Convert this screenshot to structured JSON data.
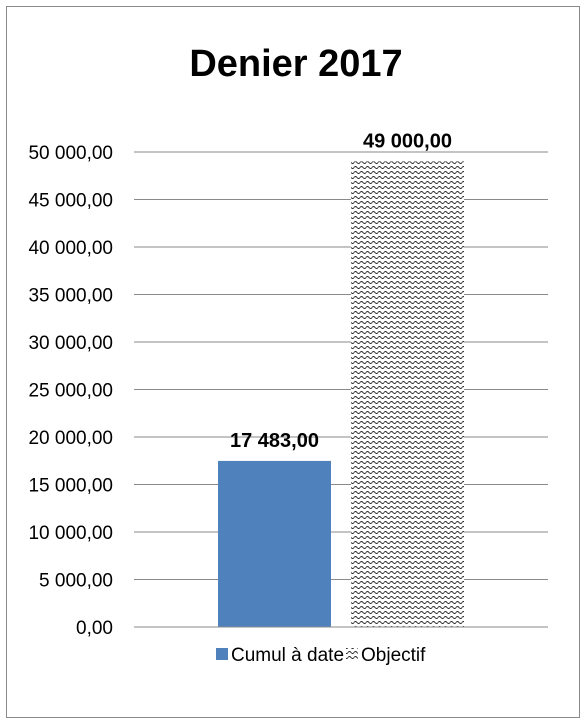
{
  "chart_data": {
    "type": "bar",
    "title": "Denier 2017",
    "xlabel": "",
    "ylabel": "",
    "ylim": [
      0,
      50000
    ],
    "ytick_step": 5000,
    "yticks": [
      "0,00",
      "5 000,00",
      "10 000,00",
      "15 000,00",
      "20 000,00",
      "25 000,00",
      "30 000,00",
      "35 000,00",
      "40 000,00",
      "45 000,00",
      "50 000,00"
    ],
    "grid": true,
    "legend_position": "bottom",
    "series": [
      {
        "name": "Cumul à date",
        "values": [
          17483
        ],
        "label": "17 483,00",
        "color": "#4f81bd",
        "fill": "solid"
      },
      {
        "name": "Objectif",
        "values": [
          49000
        ],
        "label": "49 000,00",
        "color": "#000000",
        "fill": "wave-pattern"
      }
    ]
  }
}
